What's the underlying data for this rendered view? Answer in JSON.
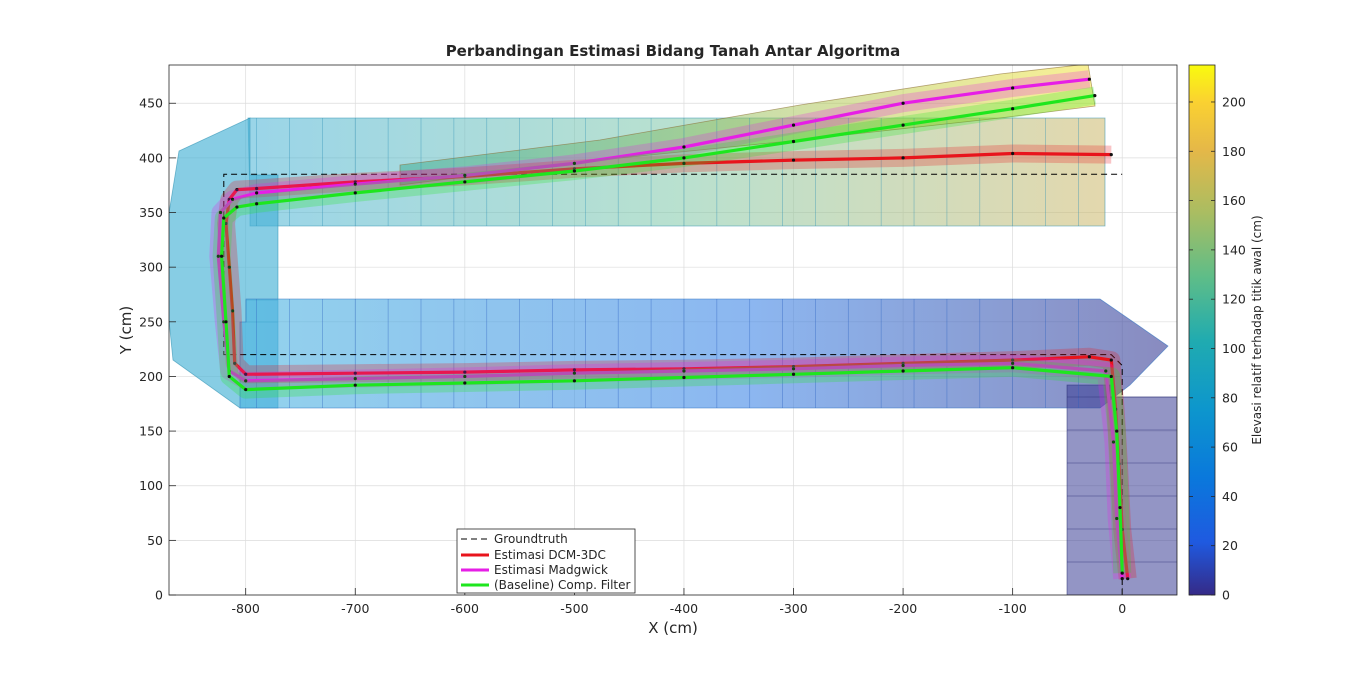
{
  "chart_data": {
    "type": "line",
    "title": "Perbandingan Estimasi Bidang Tanah Antar Algoritma",
    "xlabel": "X (cm)",
    "ylabel": "Y (cm)",
    "xlim": [
      -870,
      50
    ],
    "ylim": [
      0,
      485
    ],
    "xticks": [
      -800,
      -700,
      -600,
      -500,
      -400,
      -300,
      -200,
      -100,
      0
    ],
    "xtick_labels": [
      "-800",
      "-700",
      "-600",
      "-500",
      "-400",
      "-300",
      "-200",
      "-100",
      "0"
    ],
    "yticks": [
      0,
      50,
      100,
      150,
      200,
      250,
      300,
      350,
      400,
      450
    ],
    "ytick_labels": [
      "0",
      "50",
      "100",
      "150",
      "200",
      "250",
      "300",
      "350",
      "400",
      "450"
    ],
    "grid": true,
    "legend_position": "bottom-center",
    "colorbar": {
      "label": "Elevasi relatif terhadap titik awal (cm)",
      "range": [
        0,
        215
      ],
      "ticks": [
        0,
        20,
        40,
        60,
        80,
        100,
        120,
        140,
        160,
        180,
        200
      ],
      "tick_labels": [
        "0",
        "20",
        "40",
        "60",
        "80",
        "100",
        "120",
        "140",
        "160",
        "180",
        "200"
      ],
      "colormap": "parula"
    },
    "series": [
      {
        "name": "Groundtruth",
        "color": "#000000",
        "style": "dashed",
        "x": [
          0,
          0,
          -10,
          -820,
          -820,
          -820,
          0
        ],
        "y": [
          0,
          210,
          220,
          220,
          290,
          385,
          385
        ]
      },
      {
        "name": "Estimasi DCM-3DC",
        "color": "#e8141c",
        "style": "solid",
        "x": [
          5,
          0,
          -3,
          -6,
          -10,
          -30,
          -100,
          -200,
          -300,
          -400,
          -500,
          -600,
          -700,
          -800,
          -810,
          -812,
          -815,
          -818,
          -815,
          -808,
          -790,
          -700,
          -600,
          -500,
          -400,
          -300,
          -200,
          -100,
          -10
        ],
        "y": [
          15,
          60,
          120,
          170,
          215,
          218,
          215,
          212,
          209,
          207,
          206,
          204,
          203,
          202,
          212,
          260,
          300,
          340,
          362,
          371,
          372,
          378,
          383,
          390,
          395,
          398,
          400,
          404,
          403
        ]
      },
      {
        "name": "Estimasi Madgwick",
        "color": "#e61ee6",
        "style": "solid",
        "x": [
          0,
          -5,
          -8,
          -15,
          -100,
          -200,
          -300,
          -400,
          -500,
          -600,
          -700,
          -800,
          -815,
          -820,
          -825,
          -823,
          -812,
          -790,
          -700,
          -600,
          -500,
          -400,
          -300,
          -200,
          -100,
          -30
        ],
        "y": [
          15,
          70,
          140,
          205,
          212,
          210,
          207,
          205,
          203,
          200,
          198,
          196,
          205,
          250,
          310,
          350,
          362,
          368,
          376,
          384,
          395,
          410,
          430,
          450,
          464,
          472
        ]
      },
      {
        "name": "(Baseline) Comp. Filter",
        "color": "#1ee61e",
        "style": "solid",
        "x": [
          0,
          -2,
          -5,
          -10,
          -100,
          -200,
          -300,
          -400,
          -500,
          -600,
          -700,
          -800,
          -815,
          -818,
          -822,
          -820,
          -808,
          -790,
          -700,
          -600,
          -500,
          -400,
          -300,
          -200,
          -100,
          -25
        ],
        "y": [
          20,
          80,
          150,
          200,
          208,
          205,
          202,
          199,
          196,
          194,
          192,
          188,
          200,
          250,
          310,
          345,
          355,
          358,
          368,
          378,
          388,
          400,
          415,
          430,
          445,
          457
        ]
      }
    ]
  }
}
